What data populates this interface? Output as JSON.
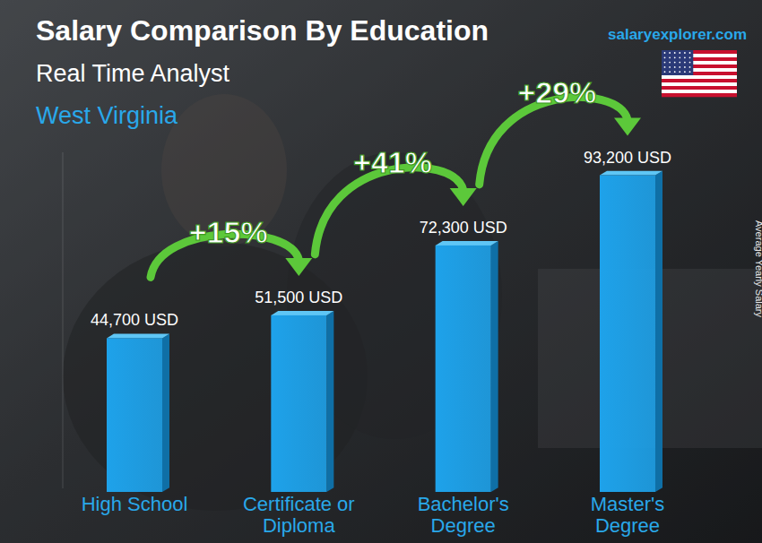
{
  "chart_data": {
    "type": "bar",
    "title": "Salary Comparison By Education",
    "subtitle": "Real Time Analyst",
    "location": "West Virginia",
    "source": "salaryexplorer.com",
    "y_label": "Average Yearly Salary",
    "categories": [
      "High School",
      "Certificate or Diploma",
      "Bachelor's Degree",
      "Master's Degree"
    ],
    "values": [
      44700,
      51500,
      72300,
      93200
    ],
    "value_labels": [
      "44,700 USD",
      "51,500 USD",
      "72,300 USD",
      "93,200 USD"
    ],
    "annotations": [
      "+15%",
      "+41%",
      "+29%"
    ],
    "color": "#1ea2ea",
    "ylim": [
      0,
      100000
    ],
    "tick_labels": false,
    "data_labels": true,
    "grid": false
  }
}
